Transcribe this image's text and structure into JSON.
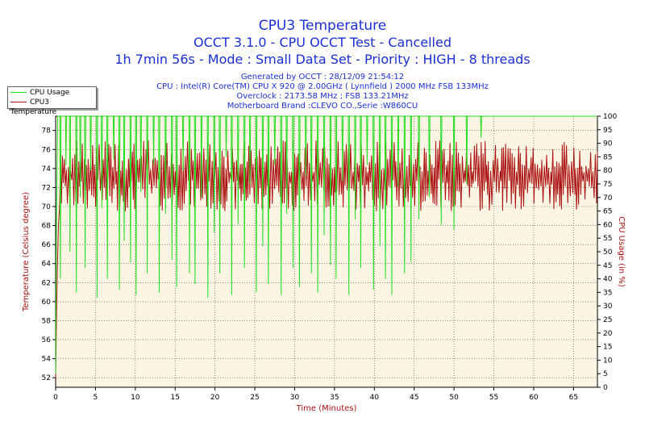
{
  "chart_data": {
    "type": "line",
    "title": "CPU3 Temperature",
    "subtitles": [
      "OCCT 3.1.0 - CPU OCCT Test - Cancelled",
      "1h 7min 56s - Mode : Small Data Set - Priority : HIGH - 8 threads"
    ],
    "info_lines": [
      "Generated by OCCT : 28/12/09 21:54:12",
      "CPU : Intel(R) Core(TM) CPU X 920 @ 2.00GHz ( Lynnfield ) 2000 MHz FSB 133MHz",
      "Overclock : 2173.58 MHz ; FSB 133.21MHz",
      "Motherboard Brand :CLEVO CO.,Serie :W860CU"
    ],
    "xlabel": "Time (Minutes)",
    "ylabel": "Temperature (Celsius degree)",
    "y2label": "CPU Usage (in %)",
    "xlim": [
      0,
      68
    ],
    "ylim": [
      51,
      79.5
    ],
    "y2lim": [
      0,
      100
    ],
    "xticks": [
      0,
      5,
      10,
      15,
      20,
      25,
      30,
      35,
      40,
      45,
      50,
      55,
      60,
      65
    ],
    "yticks": [
      52,
      54,
      56,
      58,
      60,
      62,
      64,
      66,
      68,
      70,
      72,
      74,
      76,
      78
    ],
    "y2ticks": [
      0,
      5,
      10,
      15,
      20,
      25,
      30,
      35,
      40,
      45,
      50,
      55,
      60,
      65,
      70,
      75,
      80,
      85,
      90,
      95,
      100
    ],
    "grid": true,
    "legend_position": "top-left",
    "series": [
      {
        "name": "CPU Usage",
        "axis": "right",
        "color": "#22dd22",
        "base": 100,
        "dips_minutes": [
          0.6,
          1.3,
          1.8,
          2.6,
          3.1,
          3.7,
          4.4,
          5.2,
          5.8,
          6.5,
          7.3,
          8.0,
          8.6,
          9.4,
          10.1,
          10.7,
          11.5,
          12.3,
          13.0,
          13.8,
          14.6,
          15.2,
          16.0,
          16.8,
          17.5,
          18.3,
          19.1,
          19.9,
          20.6,
          21.4,
          22.1,
          22.9,
          23.7,
          24.4,
          25.2,
          26.0,
          26.7,
          27.5,
          28.3,
          29.0,
          29.8,
          30.6,
          31.4,
          32.1,
          32.9,
          33.7,
          34.5,
          35.2,
          36.0,
          36.8,
          37.6,
          38.3,
          39.1,
          39.9,
          40.7,
          41.4,
          42.2,
          43.0,
          43.8,
          44.6,
          45.6,
          46.9,
          48.4,
          50.0,
          51.6,
          53.4
        ],
        "dip_levels": [
          40,
          82,
          50,
          35,
          70,
          44,
          80,
          33,
          66,
          40,
          84,
          36,
          54,
          46,
          34,
          72,
          42,
          82,
          35,
          64,
          47,
          37,
          80,
          42,
          38,
          70,
          33,
          57,
          42,
          85,
          34,
          60,
          44,
          75,
          35,
          52,
          38,
          82,
          34,
          64,
          44,
          37,
          78,
          42,
          35,
          56,
          45,
          40,
          76,
          34,
          62,
          44,
          82,
          36,
          52,
          40,
          34,
          74,
          42,
          46,
          62,
          70,
          60,
          58,
          75,
          92
        ]
      },
      {
        "name": "CPU3 Temperature",
        "axis": "left",
        "color": "#aa1111",
        "start": [
          [
            0.0,
            52
          ],
          [
            0.1,
            57.5
          ],
          [
            0.2,
            63
          ],
          [
            0.35,
            68
          ],
          [
            0.5,
            70
          ]
        ],
        "oscillation_min": 69.5,
        "oscillation_max": 77
      }
    ]
  }
}
